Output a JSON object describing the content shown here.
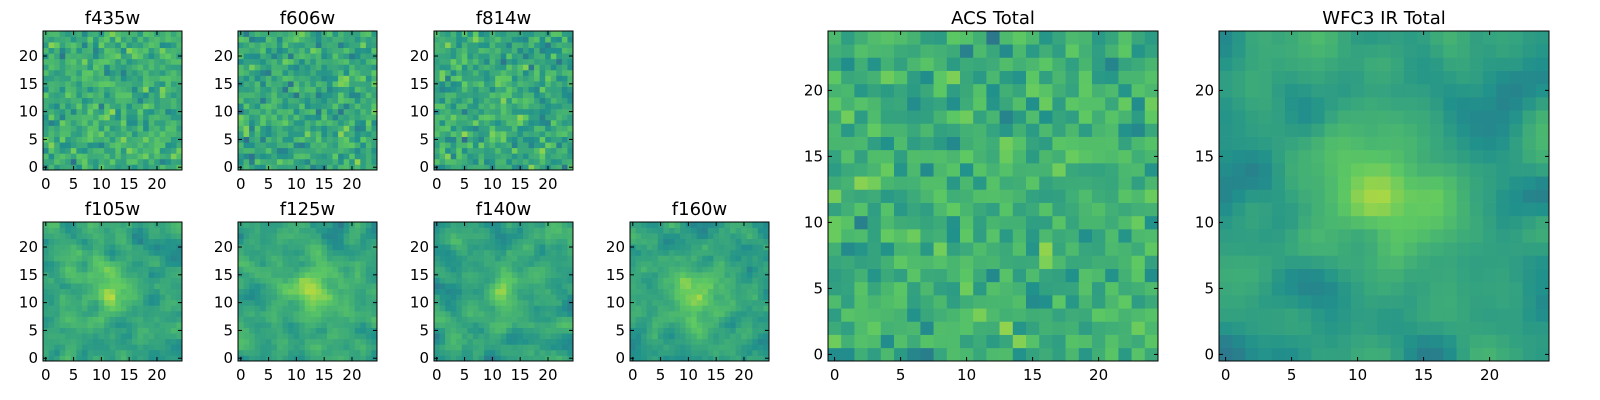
{
  "figure": {
    "colormap": "viridis",
    "colormap_stops": [
      "#440154",
      "#3b528b",
      "#21918c",
      "#5ec962",
      "#fde725"
    ]
  },
  "chart_data": [
    {
      "type": "heatmap",
      "title": "f435w",
      "grid_size": 25,
      "seed": 11,
      "smooth": 0,
      "bias": 0.62,
      "spread": 0.16,
      "peak": [
        12,
        12
      ],
      "peak_strength": 0.0,
      "xlim": [
        -0.5,
        24.5
      ],
      "ylim": [
        -0.5,
        24.5
      ],
      "xticks": [
        0,
        5,
        10,
        15,
        20
      ],
      "yticks": [
        0,
        5,
        10,
        15,
        20
      ],
      "grid": false
    },
    {
      "type": "heatmap",
      "title": "f606w",
      "grid_size": 25,
      "seed": 23,
      "smooth": 0,
      "bias": 0.6,
      "spread": 0.17,
      "peak": [
        12,
        12
      ],
      "peak_strength": 0.0,
      "xlim": [
        -0.5,
        24.5
      ],
      "ylim": [
        -0.5,
        24.5
      ],
      "xticks": [
        0,
        5,
        10,
        15,
        20
      ],
      "yticks": [
        0,
        5,
        10,
        15,
        20
      ],
      "grid": false
    },
    {
      "type": "heatmap",
      "title": "f814w",
      "grid_size": 25,
      "seed": 37,
      "smooth": 0,
      "bias": 0.6,
      "spread": 0.17,
      "peak": [
        13,
        13
      ],
      "peak_strength": 0.06,
      "xlim": [
        -0.5,
        24.5
      ],
      "ylim": [
        -0.5,
        24.5
      ],
      "xticks": [
        0,
        5,
        10,
        15,
        20
      ],
      "yticks": [
        0,
        5,
        10,
        15,
        20
      ],
      "grid": false
    },
    {
      "type": "heatmap",
      "title": "f105w",
      "grid_size": 25,
      "seed": 41,
      "smooth": 1,
      "bias": 0.58,
      "spread": 0.17,
      "peak": [
        11,
        12
      ],
      "peak_strength": 0.18,
      "xlim": [
        -0.5,
        24.5
      ],
      "ylim": [
        -0.5,
        24.5
      ],
      "xticks": [
        0,
        5,
        10,
        15,
        20
      ],
      "yticks": [
        0,
        5,
        10,
        15,
        20
      ],
      "grid": false
    },
    {
      "type": "heatmap",
      "title": "f125w",
      "grid_size": 25,
      "seed": 53,
      "smooth": 1,
      "bias": 0.6,
      "spread": 0.16,
      "peak": [
        13,
        12
      ],
      "peak_strength": 0.2,
      "xlim": [
        -0.5,
        24.5
      ],
      "ylim": [
        -0.5,
        24.5
      ],
      "xticks": [
        0,
        5,
        10,
        15,
        20
      ],
      "yticks": [
        0,
        5,
        10,
        15,
        20
      ],
      "grid": false
    },
    {
      "type": "heatmap",
      "title": "f140w",
      "grid_size": 25,
      "seed": 67,
      "smooth": 1,
      "bias": 0.58,
      "spread": 0.17,
      "peak": [
        12,
        11
      ],
      "peak_strength": 0.16,
      "xlim": [
        -0.5,
        24.5
      ],
      "ylim": [
        -0.5,
        24.5
      ],
      "xticks": [
        0,
        5,
        10,
        15,
        20
      ],
      "yticks": [
        0,
        5,
        10,
        15,
        20
      ],
      "grid": false
    },
    {
      "type": "heatmap",
      "title": "f160w",
      "grid_size": 25,
      "seed": 79,
      "smooth": 1,
      "bias": 0.58,
      "spread": 0.17,
      "peak": [
        12,
        12
      ],
      "peak_strength": 0.2,
      "xlim": [
        -0.5,
        24.5
      ],
      "ylim": [
        -0.5,
        24.5
      ],
      "xticks": [
        0,
        5,
        10,
        15,
        20
      ],
      "yticks": [
        0,
        5,
        10,
        15,
        20
      ],
      "grid": false
    },
    {
      "type": "heatmap",
      "title": "ACS Total",
      "grid_size": 25,
      "seed": 97,
      "smooth": 0,
      "bias": 0.63,
      "spread": 0.15,
      "peak": [
        12,
        12
      ],
      "peak_strength": 0.0,
      "xlim": [
        -0.5,
        24.5
      ],
      "ylim": [
        -0.5,
        24.5
      ],
      "xticks": [
        0,
        5,
        10,
        15,
        20
      ],
      "yticks": [
        0,
        5,
        10,
        15,
        20
      ],
      "grid": false
    },
    {
      "type": "heatmap",
      "title": "WFC3 IR Total",
      "grid_size": 25,
      "seed": 113,
      "smooth": 2,
      "bias": 0.55,
      "spread": 0.14,
      "peak": [
        12,
        12
      ],
      "peak_strength": 0.28,
      "xlim": [
        -0.5,
        24.5
      ],
      "ylim": [
        -0.5,
        24.5
      ],
      "xticks": [
        0,
        5,
        10,
        15,
        20
      ],
      "yticks": [
        0,
        5,
        10,
        15,
        20
      ],
      "grid": false
    }
  ]
}
